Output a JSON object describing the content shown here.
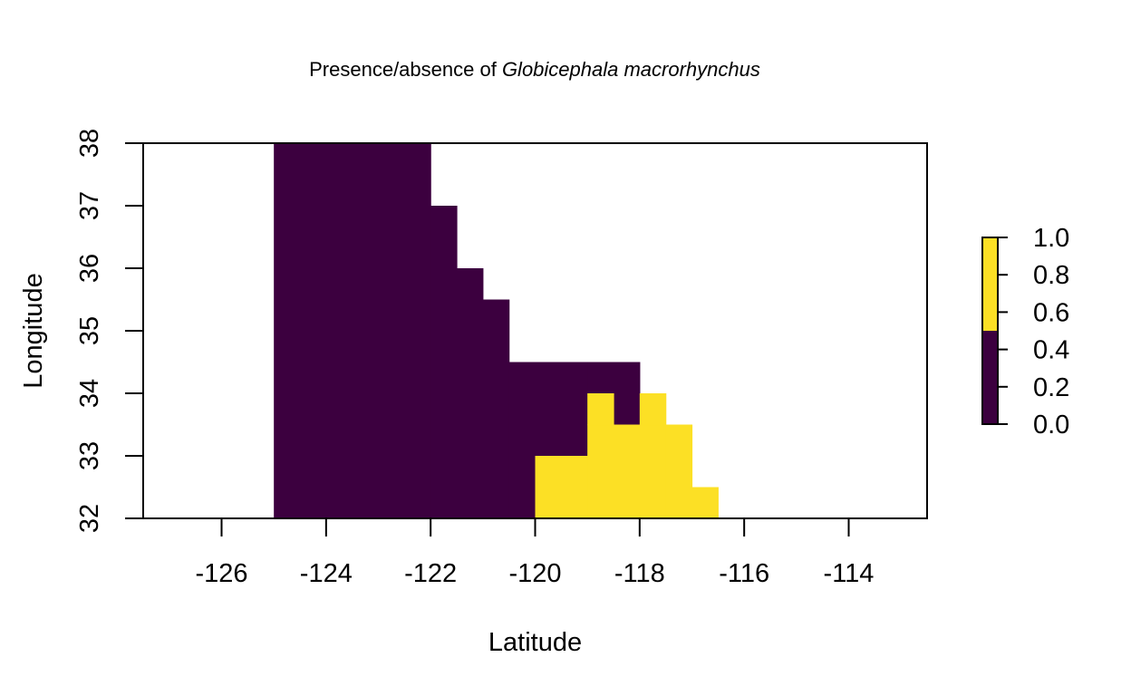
{
  "chart_data": {
    "type": "heatmap",
    "title": {
      "prefix": "Presence/absence of ",
      "species": "Globicephala macrorhynchus"
    },
    "xlabel": "Latitude",
    "ylabel": "Longitude",
    "xlim": [
      -127.5,
      -112.5
    ],
    "ylim": [
      32,
      38
    ],
    "x_ticks": [
      -126,
      -124,
      -122,
      -120,
      -118,
      -116,
      -114
    ],
    "y_ticks": [
      32,
      33,
      34,
      35,
      36,
      37,
      38
    ],
    "grid": false,
    "cell_size": 0.5,
    "colors": {
      "absent": "#3c003f",
      "present": "#fce025"
    },
    "legend": {
      "placement": "right",
      "ticks": [
        "0.0",
        "0.2",
        "0.4",
        "0.6",
        "0.8",
        "1.0"
      ],
      "bands": [
        {
          "from": 0.0,
          "to": 0.5,
          "color": "#3c003f"
        },
        {
          "from": 0.5,
          "to": 1.0,
          "color": "#fce025"
        }
      ]
    },
    "cells": [
      {
        "x0": -125.0,
        "x1": -122.0,
        "y0": 32.0,
        "y1": 38.0,
        "value": 0
      },
      {
        "x0": -122.0,
        "x1": -121.5,
        "y0": 32.0,
        "y1": 37.0,
        "value": 0
      },
      {
        "x0": -121.5,
        "x1": -121.0,
        "y0": 32.0,
        "y1": 36.0,
        "value": 0
      },
      {
        "x0": -121.0,
        "x1": -120.5,
        "y0": 32.0,
        "y1": 35.5,
        "value": 0
      },
      {
        "x0": -120.5,
        "x1": -120.0,
        "y0": 32.0,
        "y1": 34.5,
        "value": 0
      },
      {
        "x0": -120.0,
        "x1": -119.0,
        "y0": 33.0,
        "y1": 34.5,
        "value": 0
      },
      {
        "x0": -119.0,
        "x1": -118.0,
        "y0": 34.0,
        "y1": 34.5,
        "value": 0
      },
      {
        "x0": -118.5,
        "x1": -118.0,
        "y0": 33.5,
        "y1": 34.0,
        "value": 0
      },
      {
        "x0": -120.0,
        "x1": -119.0,
        "y0": 32.0,
        "y1": 33.0,
        "value": 1
      },
      {
        "x0": -119.0,
        "x1": -117.5,
        "y0": 32.0,
        "y1": 33.5,
        "value": 1
      },
      {
        "x0": -119.0,
        "x1": -118.5,
        "y0": 33.5,
        "y1": 34.0,
        "value": 1
      },
      {
        "x0": -118.0,
        "x1": -117.5,
        "y0": 33.5,
        "y1": 34.0,
        "value": 1
      },
      {
        "x0": -117.5,
        "x1": -117.0,
        "y0": 32.0,
        "y1": 33.5,
        "value": 1
      },
      {
        "x0": -117.0,
        "x1": -116.5,
        "y0": 32.0,
        "y1": 32.5,
        "value": 1
      }
    ]
  }
}
